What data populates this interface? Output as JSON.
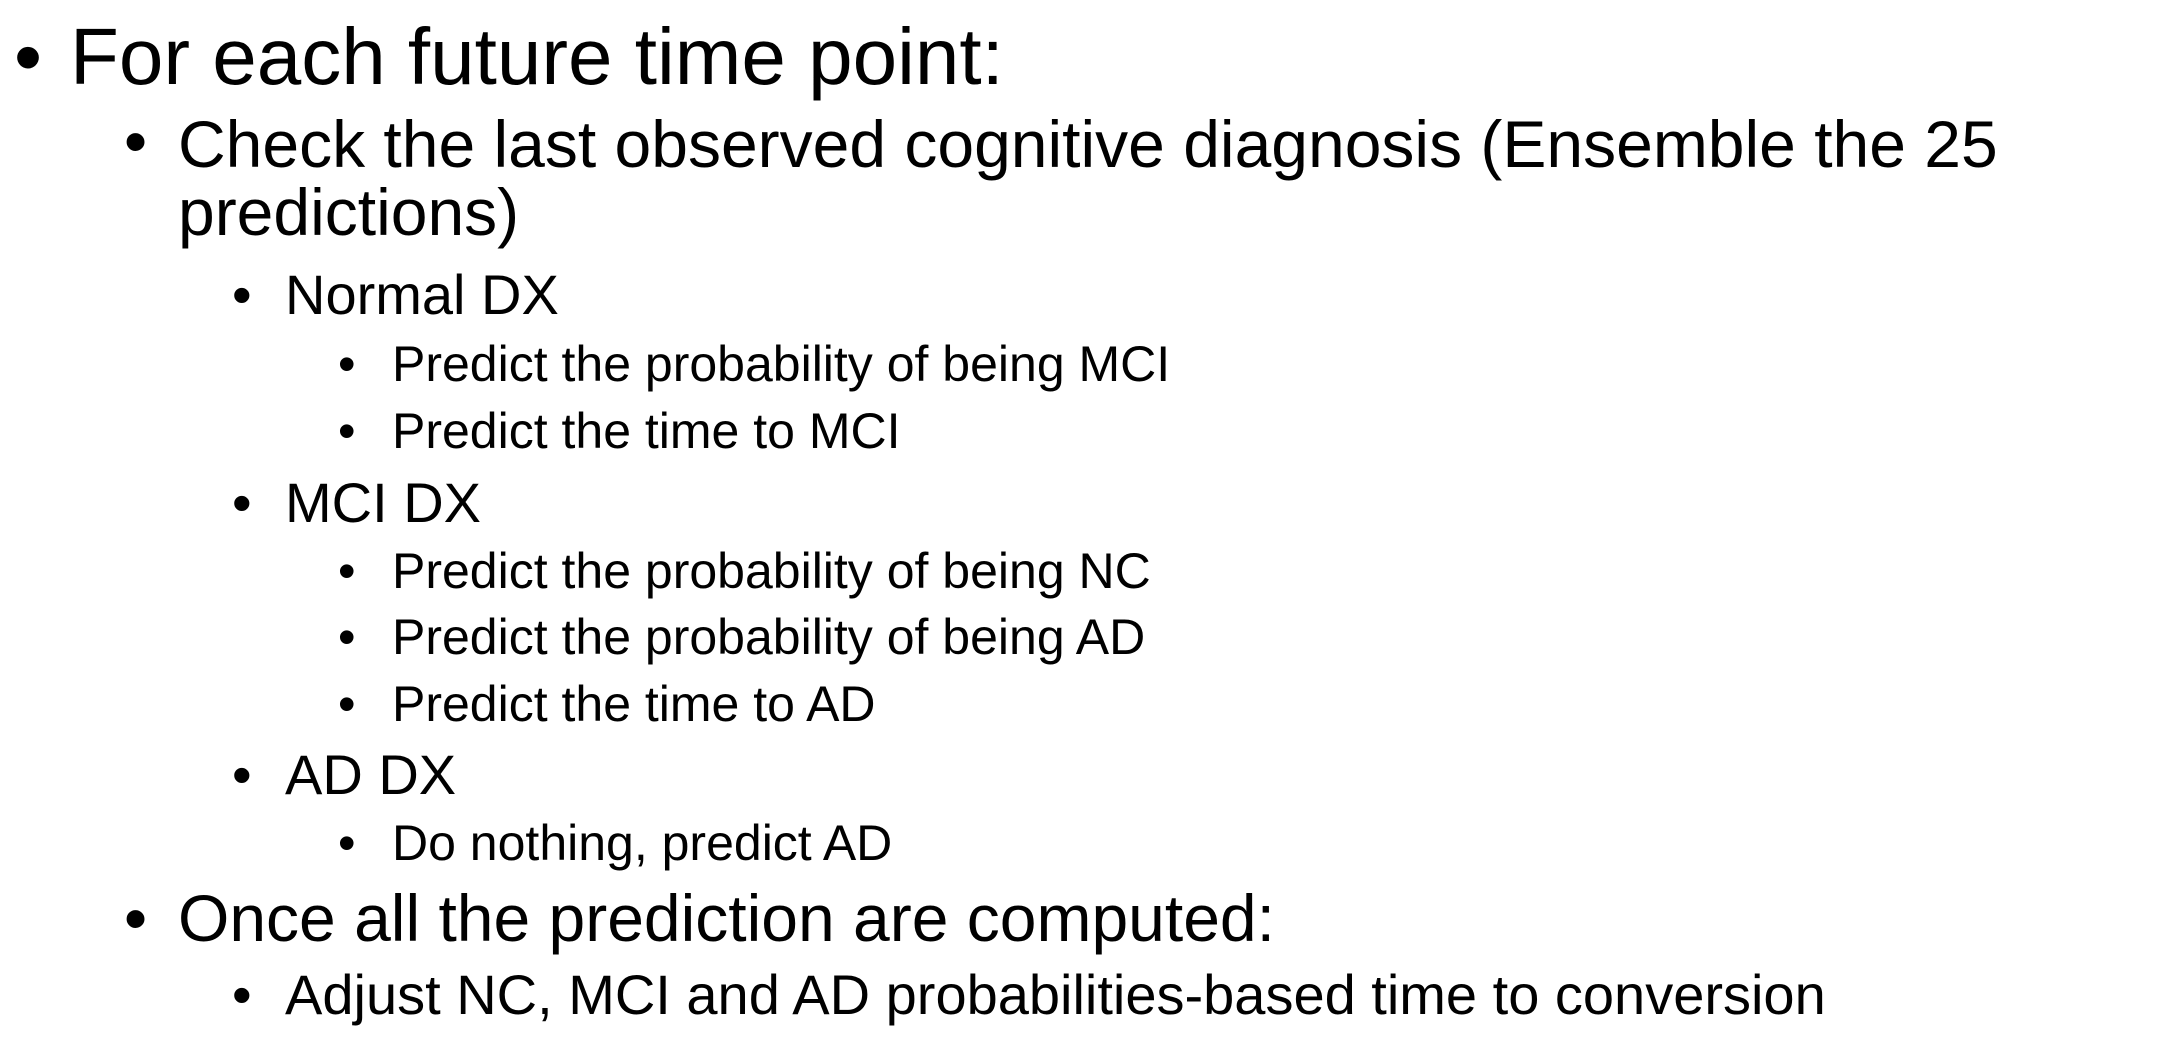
{
  "slide": {
    "bullet_char": "•",
    "items": [
      {
        "level": 1,
        "text": "For each future time point:"
      },
      {
        "level": 2,
        "text": "Check the last observed cognitive diagnosis (Ensemble the 25",
        "continuation": "predictions)"
      },
      {
        "level": 3,
        "text": "Normal DX"
      },
      {
        "level": 4,
        "text": "Predict the probability of being MCI"
      },
      {
        "level": 4,
        "text": "Predict the time to MCI"
      },
      {
        "level": 3,
        "text": "MCI DX"
      },
      {
        "level": 4,
        "text": "Predict the probability of being NC"
      },
      {
        "level": 4,
        "text": "Predict the probability of being AD"
      },
      {
        "level": 4,
        "text": "Predict the time to AD"
      },
      {
        "level": 3,
        "text": "AD DX"
      },
      {
        "level": 4,
        "text": "Do nothing, predict AD"
      },
      {
        "level": 2,
        "text": "Once all the prediction are computed:"
      },
      {
        "level": 3,
        "text": "Adjust NC, MCI and AD probabilities-based time to conversion"
      }
    ]
  }
}
